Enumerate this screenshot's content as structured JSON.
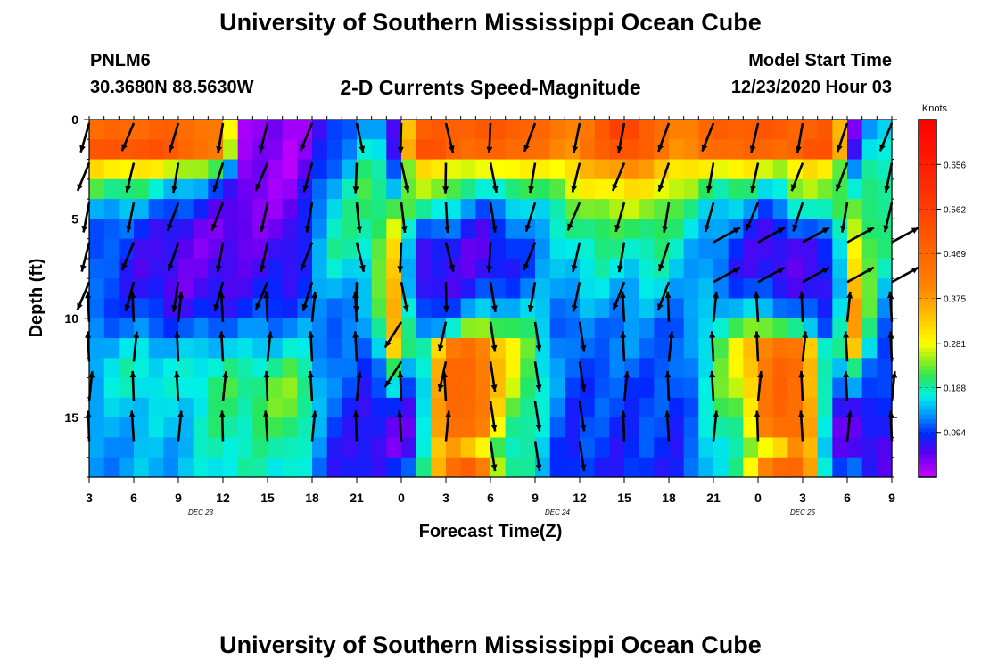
{
  "page": {
    "title_top": "University of Southern Mississippi Ocean Cube",
    "title_bottom": "University of Southern Mississippi Ocean Cube",
    "station": "PNLM6",
    "coordinates": "30.3680N 88.5630W",
    "subtitle": "2-D Currents Speed-Magnitude",
    "model_start_label": "Model Start Time",
    "model_start_value": "12/23/2020 Hour 03"
  },
  "chart_data": {
    "type": "heatmap",
    "title": "2-D Currents Speed-Magnitude",
    "xlabel": "Forecast Time(Z)",
    "ylabel": "Depth (ft)",
    "x_ticks": [
      "3",
      "6",
      "9",
      "12",
      "15",
      "18",
      "21",
      "0",
      "3",
      "6",
      "9",
      "12",
      "15",
      "18",
      "21",
      "0",
      "3",
      "6",
      "9"
    ],
    "date_labels": [
      {
        "text": "DEC 23",
        "at_hours": 7.5
      },
      {
        "text": "DEC 24",
        "at_hours": 31.5
      },
      {
        "text": "DEC 25",
        "at_hours": 48
      }
    ],
    "xlim_hours": [
      0,
      54
    ],
    "y_ticks": [
      "0",
      "5",
      "10",
      "15"
    ],
    "ylim_depth_ft": [
      0,
      18
    ],
    "colorbar": {
      "label": "Knots",
      "range": [
        0,
        0.75
      ],
      "ticks": [
        "0.656",
        "0.562",
        "0.469",
        "0.375",
        "0.281",
        "0.188",
        "0.094"
      ],
      "tick_values": [
        0.656,
        0.562,
        0.469,
        0.375,
        0.281,
        0.188,
        0.094
      ]
    },
    "depth_ft": [
      0.5,
      1.5,
      2.5,
      3.5,
      4.5,
      5.5,
      6.5,
      7.5,
      8.5,
      9.5,
      10.5,
      11.5,
      12.5,
      13.5,
      14.5,
      15.5,
      16.5,
      17.5
    ],
    "profiles_by_hour": [
      {
        "h": 0,
        "s": [
          0.45,
          0.5,
          0.3,
          0.22,
          0.15,
          0.12,
          0.12,
          0.12,
          0.11,
          0.1,
          0.12,
          0.14,
          0.15,
          0.14,
          0.13,
          0.12,
          0.12,
          0.12
        ]
      },
      {
        "h": 3,
        "s": [
          0.47,
          0.52,
          0.3,
          0.2,
          0.14,
          0.1,
          0.08,
          0.07,
          0.08,
          0.1,
          0.12,
          0.16,
          0.18,
          0.18,
          0.16,
          0.15,
          0.14,
          0.14
        ]
      },
      {
        "h": 6,
        "s": [
          0.48,
          0.5,
          0.27,
          0.15,
          0.1,
          0.06,
          0.05,
          0.05,
          0.05,
          0.07,
          0.1,
          0.14,
          0.16,
          0.16,
          0.15,
          0.15,
          0.14,
          0.14
        ]
      },
      {
        "h": 9,
        "s": [
          0.4,
          0.38,
          0.2,
          0.1,
          0.06,
          0.04,
          0.04,
          0.05,
          0.06,
          0.08,
          0.12,
          0.16,
          0.19,
          0.21,
          0.2,
          0.2,
          0.19,
          0.18
        ]
      },
      {
        "h": 10.5,
        "s": [
          0.03,
          0.03,
          0.03,
          0.03,
          0.03,
          0.04,
          0.05,
          0.06,
          0.07,
          0.09,
          0.12,
          0.15,
          0.18,
          0.2,
          0.2,
          0.19,
          0.18,
          0.18
        ]
      },
      {
        "h": 14,
        "s": [
          0.02,
          0.02,
          0.02,
          0.03,
          0.04,
          0.05,
          0.06,
          0.07,
          0.08,
          0.1,
          0.13,
          0.17,
          0.21,
          0.24,
          0.24,
          0.22,
          0.2,
          0.18
        ]
      },
      {
        "h": 16,
        "s": [
          0.07,
          0.08,
          0.1,
          0.14,
          0.16,
          0.17,
          0.18,
          0.16,
          0.14,
          0.12,
          0.12,
          0.12,
          0.12,
          0.12,
          0.11,
          0.1,
          0.09,
          0.09
        ]
      },
      {
        "h": 19,
        "s": [
          0.16,
          0.19,
          0.21,
          0.22,
          0.21,
          0.2,
          0.19,
          0.17,
          0.15,
          0.14,
          0.12,
          0.1,
          0.09,
          0.08,
          0.07,
          0.07,
          0.06,
          0.06
        ]
      },
      {
        "h": 20.5,
        "s": [
          0.05,
          0.07,
          0.12,
          0.16,
          0.22,
          0.26,
          0.3,
          0.32,
          0.35,
          0.37,
          0.36,
          0.32,
          0.2,
          0.15,
          0.08,
          0.05,
          0.05,
          0.1
        ]
      },
      {
        "h": 22,
        "s": [
          0.5,
          0.52,
          0.3,
          0.25,
          0.2,
          0.12,
          0.08,
          0.07,
          0.06,
          0.08,
          0.1,
          0.12,
          0.1,
          0.08,
          0.07,
          0.06,
          0.07,
          0.1
        ]
      },
      {
        "h": 24,
        "s": [
          0.48,
          0.5,
          0.3,
          0.25,
          0.18,
          0.12,
          0.07,
          0.06,
          0.06,
          0.1,
          0.16,
          0.4,
          0.45,
          0.45,
          0.46,
          0.46,
          0.42,
          0.45
        ]
      },
      {
        "h": 26,
        "s": [
          0.5,
          0.45,
          0.25,
          0.16,
          0.1,
          0.06,
          0.05,
          0.06,
          0.09,
          0.14,
          0.25,
          0.45,
          0.47,
          0.48,
          0.48,
          0.45,
          0.3,
          0.48
        ]
      },
      {
        "h": 28,
        "s": [
          0.5,
          0.48,
          0.3,
          0.2,
          0.14,
          0.1,
          0.08,
          0.07,
          0.1,
          0.15,
          0.22,
          0.3,
          0.3,
          0.28,
          0.25,
          0.22,
          0.2,
          0.2
        ]
      },
      {
        "h": 30,
        "s": [
          0.48,
          0.45,
          0.28,
          0.2,
          0.16,
          0.14,
          0.12,
          0.12,
          0.13,
          0.15,
          0.18,
          0.2,
          0.2,
          0.2,
          0.19,
          0.18,
          0.17,
          0.17
        ]
      },
      {
        "h": 32,
        "s": [
          0.4,
          0.38,
          0.3,
          0.25,
          0.2,
          0.18,
          0.16,
          0.15,
          0.14,
          0.12,
          0.1,
          0.1,
          0.1,
          0.1,
          0.09,
          0.09,
          0.08,
          0.08
        ]
      },
      {
        "h": 34,
        "s": [
          0.45,
          0.45,
          0.35,
          0.3,
          0.25,
          0.22,
          0.2,
          0.18,
          0.16,
          0.14,
          0.12,
          0.12,
          0.11,
          0.1,
          0.1,
          0.1,
          0.1,
          0.09
        ]
      },
      {
        "h": 36,
        "s": [
          0.6,
          0.55,
          0.4,
          0.3,
          0.25,
          0.2,
          0.18,
          0.16,
          0.14,
          0.13,
          0.12,
          0.12,
          0.11,
          0.1,
          0.1,
          0.09,
          0.08,
          0.08
        ]
      }
    ],
    "arrows_note": "direction arrows overlay at 3-hour, 2-ft grid"
  }
}
